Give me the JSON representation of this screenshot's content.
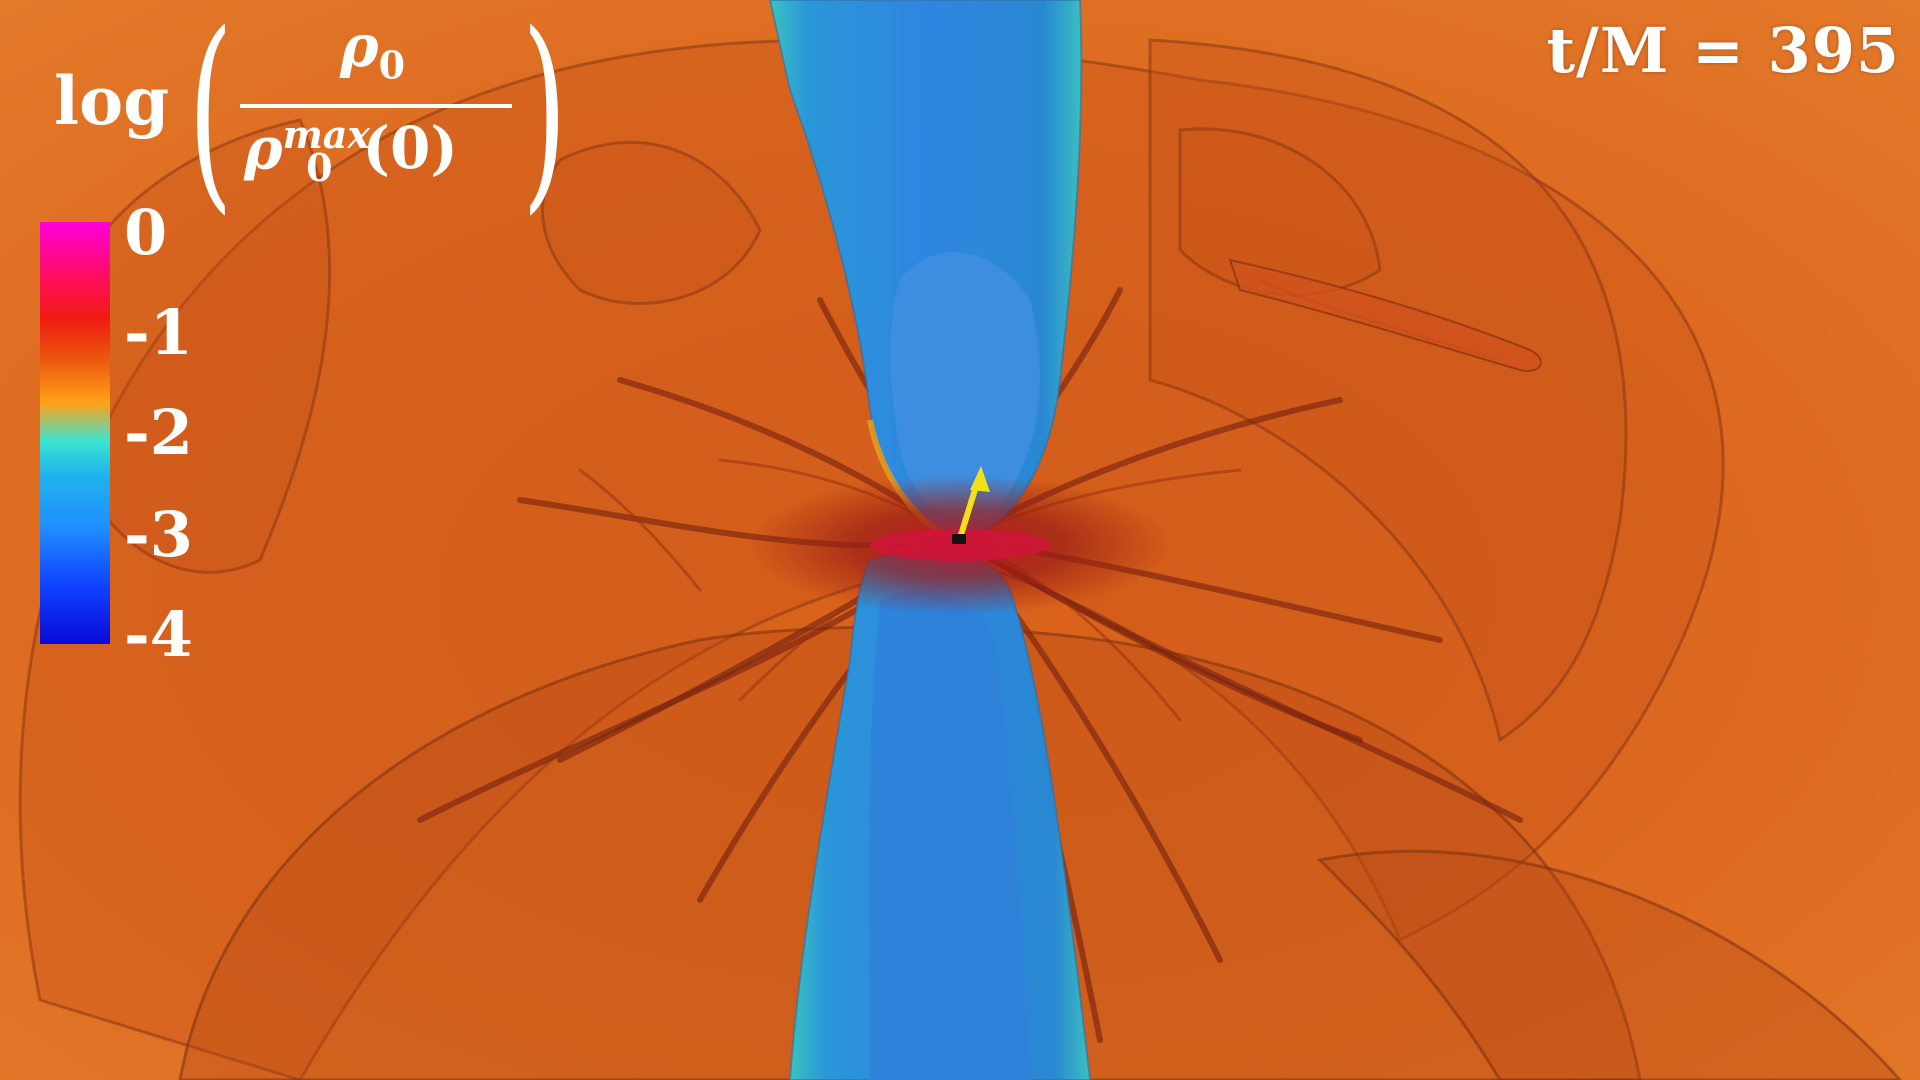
{
  "time_label": "t/M = 395",
  "legend": {
    "title": {
      "log": "log",
      "numerator_symbol": "ρ",
      "numerator_sub": "0",
      "denominator_symbol": "ρ",
      "denominator_sub": "0",
      "denominator_sup": "max",
      "denominator_arg": "(0)"
    },
    "ticks": [
      "0",
      "-1",
      "-2",
      "-3",
      "-4"
    ],
    "colors": [
      "#ff00dd",
      "#f01b12",
      "#ffa217",
      "#1fb3ec",
      "#0a0ad8"
    ]
  },
  "scene": {
    "background_color": "#d9661e",
    "jet_color": "#2a7fd6",
    "jet_edge_color": "#3ec7c9",
    "filament_color": "#8a2a10",
    "arrow_color": "#f2e01a",
    "icons": [
      "black-hole-marker-icon",
      "spin-arrow-icon"
    ]
  }
}
